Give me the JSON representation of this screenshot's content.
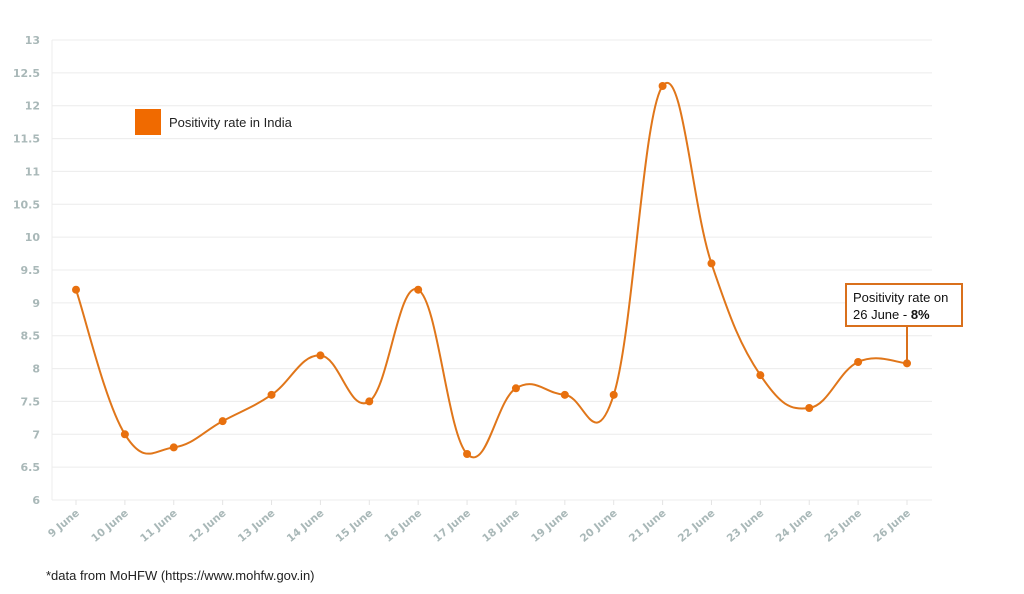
{
  "chart_data": {
    "type": "line",
    "title": "",
    "xlabel": "",
    "ylabel": "",
    "categories": [
      "9 June",
      "10 June",
      "11 June",
      "12 June",
      "13 June",
      "14 June",
      "15 June",
      "16 June",
      "17 June",
      "18 June",
      "19 June",
      "20 June",
      "21 June",
      "22 June",
      "23 June",
      "24 June",
      "25 June",
      "26 June"
    ],
    "series": [
      {
        "name": "Positivity rate in India",
        "color": "#e0761a",
        "values": [
          9.2,
          7.0,
          6.8,
          7.2,
          7.6,
          8.2,
          7.5,
          9.2,
          6.7,
          7.7,
          7.6,
          7.6,
          12.3,
          9.6,
          7.9,
          7.4,
          8.1,
          8.08
        ]
      }
    ],
    "ylim": [
      6,
      13
    ],
    "yticks": [
      "6",
      "6.5",
      "7",
      "7.5",
      "8",
      "8.5",
      "9",
      "9.5",
      "10",
      "10.5",
      "11",
      "11.5",
      "12",
      "12.5",
      "13"
    ],
    "grid": true,
    "legend_position": "top-left",
    "annotation": {
      "target": "26 June",
      "line1": "Positivity rate on",
      "line2_prefix": "26 June - ",
      "line2_value": "8%"
    }
  },
  "legend": {
    "label": "Positivity rate in India",
    "color": "#f06a00"
  },
  "footnote": "*data from MoHFW (https://www.mohfw.gov.in)"
}
